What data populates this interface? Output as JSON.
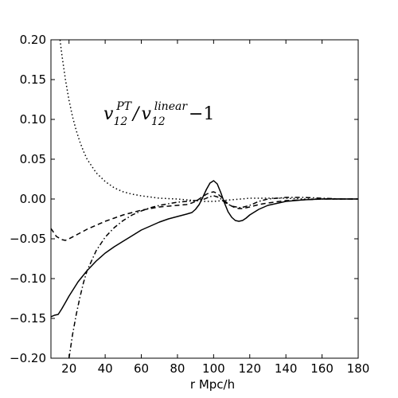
{
  "chart_data": {
    "type": "line",
    "title": "",
    "xlabel": "r Mpc/h",
    "ylabel": "",
    "xlim": [
      10,
      180
    ],
    "ylim": [
      -0.2,
      0.2
    ],
    "grid": false,
    "legend": "none",
    "xticks": [
      20,
      40,
      60,
      80,
      100,
      120,
      140,
      160,
      180
    ],
    "yticks": [
      -0.2,
      -0.15,
      -0.1,
      -0.05,
      0.0,
      0.05,
      0.1,
      0.15,
      0.2
    ],
    "xtick_labels": [
      "20",
      "40",
      "60",
      "80",
      "100",
      "120",
      "140",
      "160",
      "180"
    ],
    "ytick_labels": [
      "−0.20",
      "−0.15",
      "−0.10",
      "−0.05",
      "0.00",
      "0.05",
      "0.10",
      "0.15",
      "0.20"
    ],
    "annotation": {
      "v": "v",
      "sub1": "12",
      "sup1": "PT",
      "slash": "/",
      "sub2": "12",
      "sup2": "linear",
      "minus_one": "−1"
    },
    "series": [
      {
        "style": "solid",
        "x": [
          10,
          12,
          14,
          16,
          18,
          20,
          25,
          30,
          35,
          40,
          45,
          50,
          55,
          60,
          65,
          70,
          75,
          80,
          85,
          88,
          90,
          92,
          94,
          96,
          98,
          100,
          102,
          104,
          106,
          108,
          110,
          112,
          114,
          116,
          118,
          120,
          125,
          130,
          140,
          150,
          160,
          170,
          180
        ],
        "y": [
          -0.148,
          -0.146,
          -0.145,
          -0.138,
          -0.13,
          -0.122,
          -0.104,
          -0.09,
          -0.078,
          -0.068,
          -0.06,
          -0.053,
          -0.046,
          -0.039,
          -0.034,
          -0.029,
          -0.025,
          -0.022,
          -0.019,
          -0.017,
          -0.013,
          -0.007,
          0.002,
          0.012,
          0.02,
          0.023,
          0.019,
          0.008,
          -0.005,
          -0.016,
          -0.023,
          -0.027,
          -0.028,
          -0.027,
          -0.024,
          -0.02,
          -0.013,
          -0.008,
          -0.003,
          -0.001,
          0.0,
          0.0,
          0.0
        ]
      },
      {
        "style": "dashed",
        "x": [
          10,
          13,
          16,
          18,
          20,
          25,
          30,
          35,
          40,
          45,
          50,
          55,
          60,
          65,
          70,
          75,
          80,
          85,
          88,
          90,
          92,
          94,
          96,
          98,
          100,
          102,
          104,
          106,
          108,
          110,
          112,
          114,
          116,
          118,
          120,
          125,
          130,
          140,
          150,
          160,
          170,
          180
        ],
        "y": [
          -0.037,
          -0.047,
          -0.051,
          -0.052,
          -0.05,
          -0.044,
          -0.038,
          -0.033,
          -0.028,
          -0.024,
          -0.02,
          -0.017,
          -0.014,
          -0.012,
          -0.01,
          -0.009,
          -0.008,
          -0.007,
          -0.005,
          -0.003,
          0.0,
          0.003,
          0.006,
          0.008,
          0.009,
          0.007,
          0.003,
          -0.002,
          -0.006,
          -0.009,
          -0.011,
          -0.012,
          -0.012,
          -0.011,
          -0.01,
          -0.007,
          -0.005,
          -0.002,
          -0.001,
          0.0,
          0.0,
          0.0
        ]
      },
      {
        "style": "dotted",
        "x": [
          15,
          16,
          18,
          20,
          22,
          24,
          26,
          28,
          30,
          35,
          40,
          45,
          50,
          55,
          60,
          70,
          80,
          90,
          95,
          100,
          105,
          110,
          115,
          120,
          130,
          140,
          150,
          160,
          170,
          180
        ],
        "y": [
          0.2,
          0.182,
          0.15,
          0.124,
          0.103,
          0.086,
          0.072,
          0.06,
          0.05,
          0.033,
          0.022,
          0.014,
          0.009,
          0.006,
          0.004,
          0.001,
          0.0,
          -0.002,
          -0.003,
          -0.003,
          -0.002,
          -0.001,
          0.0,
          0.001,
          0.001,
          0.001,
          0.0,
          0.0,
          0.0,
          0.0
        ]
      },
      {
        "style": "dashdot",
        "x": [
          20,
          22,
          24,
          26,
          28,
          30,
          35,
          40,
          45,
          50,
          55,
          60,
          65,
          70,
          75,
          80,
          85,
          90,
          95,
          98,
          100,
          103,
          106,
          110,
          115,
          120,
          125,
          130,
          140,
          150,
          160,
          170,
          180
        ],
        "y": [
          -0.2,
          -0.17,
          -0.145,
          -0.124,
          -0.105,
          -0.09,
          -0.065,
          -0.048,
          -0.036,
          -0.027,
          -0.02,
          -0.015,
          -0.011,
          -0.008,
          -0.006,
          -0.004,
          -0.003,
          -0.002,
          0.0,
          0.003,
          0.004,
          0.002,
          -0.004,
          -0.009,
          -0.011,
          -0.008,
          -0.003,
          0.0,
          0.002,
          0.002,
          0.001,
          0.0,
          0.0
        ]
      }
    ]
  }
}
